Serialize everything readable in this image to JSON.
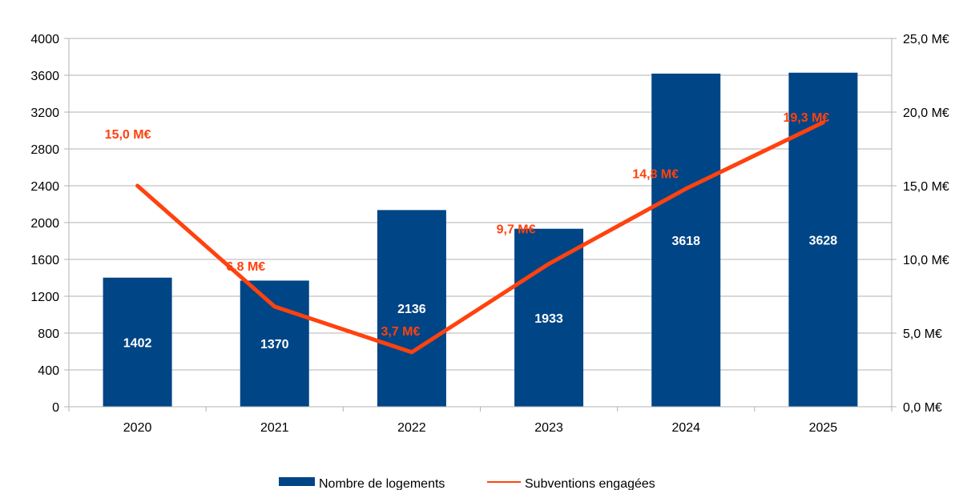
{
  "chart_data": {
    "type": "bar",
    "categories": [
      "2020",
      "2021",
      "2022",
      "2023",
      "2024",
      "2025"
    ],
    "series": [
      {
        "name": "Nombre de logements",
        "kind": "bar",
        "axis": "left",
        "color": "#004586",
        "values": [
          1402,
          1370,
          2136,
          1933,
          3618,
          3628
        ],
        "labels": [
          "1402",
          "1370",
          "2136",
          "1933",
          "3618",
          "3628"
        ]
      },
      {
        "name": "Subventions engagées",
        "kind": "line",
        "axis": "right",
        "color": "#ff420e",
        "values": [
          15.0,
          6.8,
          3.7,
          9.7,
          14.8,
          19.3
        ],
        "labels": [
          "15,0 M€",
          "6,8 M€",
          "3,7 M€",
          "9,7 M€",
          "14,8 M€",
          "19,3 M€"
        ]
      }
    ],
    "y_left": {
      "min": 0,
      "max": 4000,
      "ticks": [
        "0",
        "400",
        "800",
        "1200",
        "1600",
        "2000",
        "2400",
        "2800",
        "3200",
        "3600",
        "4000"
      ]
    },
    "y_right": {
      "min": 0,
      "max": 25,
      "ticks": [
        "0,0 M€",
        "5,0 M€",
        "10,0 M€",
        "15,0 M€",
        "20,0 M€",
        "25,0 M€"
      ]
    },
    "grid": true,
    "legend_position": "bottom",
    "title": "",
    "xlabel": "",
    "ylabel": ""
  }
}
